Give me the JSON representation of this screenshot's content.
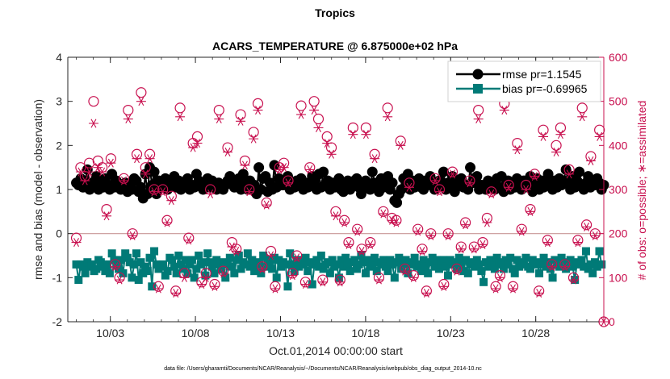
{
  "chart_data": {
    "type": "line",
    "title": "Tropics",
    "subtitle": "ACARS_TEMPERATURE @ 6.875000e+02 hPa",
    "xlabel": "Oct.01,2014 00:00:00 start",
    "ylabel": "rmse and bias (model - observation)",
    "ylabel_right": "# of obs: o=possible; ∗=assimilated",
    "xlim": [
      0.5,
      32
    ],
    "ylim": [
      -2,
      4
    ],
    "ylim_right": [
      0,
      600
    ],
    "x_tick_values": [
      3,
      8,
      13,
      18,
      23,
      28
    ],
    "x_tick_labels": [
      "10/03",
      "10/08",
      "10/13",
      "10/18",
      "10/23",
      "10/28"
    ],
    "y_tick_labels": [
      "-2",
      "-1",
      "0",
      "1",
      "2",
      "3",
      "4"
    ],
    "y_tick_labels_right": [
      "0",
      "100",
      "200",
      "300",
      "400",
      "500",
      "600"
    ],
    "grid": false,
    "legend_position": "top-right",
    "footer": "data file: /Users/gharamti/Documents/NCAR/Reanalysis/~/Documents/NCAR/Reanalysis/webpub/obs_diag_output_2014-10.nc",
    "colors": {
      "rmse": "#000000",
      "bias": "#007a77",
      "obs": "#c8104f",
      "zero_line": "#c89696"
    },
    "series": [
      {
        "name": "rmse",
        "legend": "rmse pr=1.1545",
        "values": [
          1.15,
          1.1,
          1.25,
          1.05,
          1.2,
          1.45,
          1.0,
          1.15,
          1.1,
          1.3,
          1.0,
          1.2,
          1.05,
          1.25,
          1.1,
          1.0,
          1.35,
          1.05,
          1.2,
          1.1,
          1.0,
          1.05,
          1.15,
          0.95,
          1.1,
          1.0,
          1.25,
          1.2,
          0.95,
          1.05,
          0.8,
          1.35,
          0.9,
          1.5,
          1.1,
          1.4,
          0.9,
          1.2,
          1.05,
          1.1,
          1.25,
          1.0,
          1.15,
          1.1,
          1.3,
          1.05,
          1.2,
          1.0,
          1.1,
          1.15,
          1.25,
          1.0,
          1.1,
          1.05,
          1.35,
          1.2,
          1.1,
          1.0,
          1.15,
          1.25,
          1.05,
          1.2,
          1.1,
          1.0,
          1.15,
          1.05,
          1.0,
          1.1,
          1.2,
          1.3,
          1.15,
          1.05,
          1.1,
          1.25,
          1.0,
          1.35,
          1.1,
          1.0,
          1.2,
          1.05,
          1.1,
          0.9,
          1.5,
          1.0,
          1.25,
          1.3,
          0.95,
          1.15,
          1.0,
          1.55,
          1.05,
          1.25,
          1.1,
          1.1,
          1.2,
          1.3,
          1.0,
          1.15,
          1.05,
          1.2,
          1.1,
          1.25,
          1.0,
          1.15,
          1.05,
          1.1,
          1.3,
          1.2,
          1.0,
          1.35,
          1.05,
          1.4,
          1.1,
          1.2,
          1.0,
          1.15,
          1.05,
          1.1,
          1.25,
          1.0,
          0.95,
          1.1,
          1.2,
          1.0,
          1.1,
          1.2,
          1.25,
          1.05,
          0.9,
          1.1,
          1.2,
          1.05,
          1.0,
          1.4,
          1.15,
          1.1,
          0.95,
          1.25,
          1.05,
          1.2,
          1.3,
          1.0,
          1.15,
          0.75,
          0.7,
          0.9,
          1.0,
          1.25,
          1.1,
          1.35,
          1.0,
          1.2,
          1.05,
          1.15,
          1.25,
          1.05,
          1.0,
          1.2,
          1.1,
          1.3,
          1.15,
          1.0,
          1.05,
          1.2,
          1.1,
          1.4,
          1.0,
          1.15,
          1.05,
          1.3,
          0.95,
          1.1,
          1.2,
          1.25,
          1.05,
          1.1,
          1.0,
          1.5,
          1.15,
          1.25,
          1.3,
          1.0,
          1.1,
          1.05,
          1.0,
          1.2,
          1.15,
          1.1,
          1.0,
          1.25,
          1.05,
          1.3,
          0.95,
          1.1,
          1.2,
          1.0,
          1.15,
          1.05,
          1.25,
          1.1,
          1.0,
          1.2,
          1.15,
          1.05,
          1.3,
          0.95,
          1.1,
          1.25,
          1.0,
          1.2,
          1.05,
          1.15,
          1.35,
          1.1,
          1.0,
          1.2,
          1.05,
          1.25,
          1.1,
          1.2,
          1.45,
          1.15,
          1.0,
          1.3,
          1.05,
          1.2,
          1.4,
          1.1,
          1.0,
          1.15,
          1.3,
          1.05,
          1.2,
          1.1,
          1.25,
          1.15,
          1.0,
          1.1
        ]
      },
      {
        "name": "bias",
        "legend": "bias pr=-0.69965",
        "values": [
          -0.7,
          -1.05,
          -0.7,
          -0.75,
          -0.9,
          -0.65,
          -0.75,
          -0.7,
          -0.85,
          -0.8,
          -0.6,
          -0.65,
          -0.75,
          -0.85,
          -0.7,
          -0.9,
          -0.45,
          -0.6,
          -0.7,
          -0.8,
          -0.6,
          -0.9,
          -0.45,
          -0.55,
          -0.65,
          -1.0,
          -0.7,
          -0.45,
          -1.05,
          -0.65,
          -0.9,
          -0.75,
          -0.85,
          -0.55,
          -1.2,
          -0.4,
          -0.7,
          -0.8,
          -0.75,
          -0.7,
          -0.95,
          -0.85,
          -0.55,
          -0.6,
          -0.75,
          -0.9,
          -0.5,
          -0.7,
          -0.8,
          -0.6,
          -0.9,
          -0.7,
          -0.6,
          -1.0,
          -0.8,
          -0.5,
          -0.7,
          -0.65,
          -0.95,
          -0.45,
          -0.65,
          -0.75,
          -0.9,
          -0.6,
          -0.7,
          -0.8,
          -0.65,
          -1.0,
          -0.7,
          -0.55,
          -0.75,
          -0.9,
          -0.6,
          -0.5,
          -0.8,
          -0.65,
          -0.7,
          -0.45,
          -0.75,
          -0.6,
          -0.85,
          -0.7,
          -0.65,
          -0.9,
          -0.5,
          -0.75,
          -0.6,
          -0.7,
          -0.8,
          -0.55,
          -1.0,
          -0.6,
          -0.75,
          -0.65,
          -0.7,
          -1.2,
          -0.45,
          -0.7,
          -0.85,
          -0.6,
          -0.75,
          -0.6,
          -0.7,
          -0.55,
          -0.85,
          -0.65,
          -1.15,
          -0.7,
          -0.6,
          -0.75,
          -0.5,
          -0.8,
          -0.7,
          -0.65,
          -0.9,
          -0.6,
          -0.75,
          -0.7,
          -1.0,
          -0.6,
          -0.75,
          -0.55,
          -0.7,
          -0.85,
          -0.65,
          -0.6,
          -0.8,
          -0.7,
          -0.5,
          -0.65,
          -0.9,
          -0.6,
          -0.75,
          -0.7,
          -0.55,
          -0.85,
          -0.65,
          -0.7,
          -0.6,
          -0.75,
          -0.85,
          -0.6,
          -0.7,
          -1.0,
          -0.65,
          -0.55,
          -0.8,
          -0.7,
          -0.6,
          -0.9,
          -0.7,
          -0.65,
          -0.55,
          -0.75,
          -0.7,
          -0.85,
          -0.6,
          -0.75,
          -0.9,
          -0.65,
          -0.55,
          -0.75,
          -0.6,
          -0.8,
          -0.7,
          -0.6,
          -0.75,
          -0.95,
          -0.6,
          -0.7,
          -0.65,
          -0.8,
          -0.55,
          -0.7,
          -0.85,
          -0.6,
          -0.9,
          -0.7,
          -0.65,
          -0.75,
          -0.6,
          -0.7,
          -0.85,
          -1.1,
          -0.65,
          -0.75,
          -0.6,
          -0.7,
          -0.8,
          -0.55,
          -0.7,
          -0.65,
          -0.8,
          -0.6,
          -0.7,
          -0.55,
          -0.8,
          -0.9,
          -0.6,
          -0.75,
          -0.7,
          -0.65,
          -0.55,
          -0.75,
          -0.8,
          -0.6,
          -0.7,
          -0.65,
          -0.9,
          -0.7,
          -0.55,
          -0.75,
          -0.65,
          -0.8,
          -1.0,
          -0.6,
          -0.7,
          -0.75,
          -0.55,
          -0.65,
          -0.8,
          -0.7,
          -0.6,
          -0.75,
          -1.05,
          -0.65,
          -0.7,
          -0.6,
          -0.75,
          -0.4,
          -0.8,
          -0.7,
          -0.9,
          -0.65,
          -0.75,
          -0.4,
          -0.7
        ]
      },
      {
        "name": "possible",
        "values": [
          190,
          80,
          350,
          410,
          330,
          100,
          360,
          350,
          500,
          340,
          365,
          510,
          350,
          150,
          255,
          110,
          370,
          370,
          130,
          510,
          100,
          125,
          325,
          290,
          480,
          345,
          200,
          100,
          380,
          200,
          520,
          320,
          350,
          120,
          380,
          540,
          300,
          555,
          80,
          180,
          300,
          305,
          230,
          130,
          285,
          425,
          70,
          270,
          485,
          500,
          110,
          260,
          190,
          90,
          405,
          350,
          420,
          495,
          90,
          480,
          110,
          310,
          300,
          490,
          85,
          180,
          480,
          480,
          115,
          95,
          395,
          185,
          180,
          285,
          165,
          310,
          470,
          300,
          365,
          330,
          300,
          100,
          430,
          235,
          495,
          300,
          125,
          185,
          270,
          335,
          160,
          200,
          80,
          420,
          350,
          525,
          360,
          470,
          320,
          480,
          110,
          300,
          150,
          240,
          490,
          200,
          90,
          290,
          350,
          160,
          500,
          120,
          460,
          180,
          95,
          90,
          420,
          135,
          395,
          160,
          250,
          380,
          95,
          90,
          230,
          410,
          180,
          130,
          440,
          195,
          210,
          110,
          165,
          285,
          440,
          70,
          180,
          75,
          380,
          330,
          100,
          200,
          250,
          180,
          485,
          300,
          235,
          130,
          230,
          110,
          410,
          520,
          120,
          320,
          315,
          250,
          105,
          440,
          210,
          200,
          165,
          470,
          70,
          420,
          200,
          70,
          325,
          305,
          300,
          190,
          85,
          110,
          200,
          300,
          340,
          480,
          120,
          305,
          170,
          290,
          225,
          510,
          320,
          195,
          170,
          100,
          480,
          320,
          180,
          120,
          235,
          380,
          295,
          130,
          80,
          495,
          105,
          180,
          495,
          345,
          310,
          180,
          80,
          345,
          405,
          150,
          210,
          90,
          310,
          110,
          255,
          520,
          335,
          485,
          70,
          90,
          435,
          310,
          185,
          300,
          130,
          170,
          400,
          340,
          440,
          110,
          130,
          400,
          345,
          460,
          100,
          130,
          185,
          510,
          485,
          180,
          220,
          405,
          375,
          410,
          200,
          150,
          435,
          10,
          0
        ]
      },
      {
        "name": "assimilated",
        "values": [
          180,
          75,
          340,
          380,
          320,
          95,
          340,
          335,
          450,
          330,
          350,
          480,
          340,
          140,
          240,
          100,
          360,
          360,
          125,
          490,
          95,
          120,
          320,
          280,
          460,
          335,
          195,
          95,
          370,
          190,
          500,
          310,
          335,
          115,
          370,
          510,
          295,
          535,
          75,
          170,
          295,
          300,
          225,
          120,
          275,
          410,
          65,
          260,
          465,
          480,
          100,
          255,
          185,
          85,
          395,
          345,
          405,
          480,
          85,
          460,
          100,
          305,
          290,
          470,
          80,
          175,
          460,
          460,
          110,
          90,
          385,
          175,
          170,
          275,
          160,
          300,
          455,
          295,
          355,
          320,
          295,
          95,
          415,
          225,
          480,
          295,
          120,
          175,
          265,
          325,
          150,
          195,
          75,
          405,
          345,
          505,
          350,
          455,
          315,
          460,
          105,
          295,
          145,
          230,
          470,
          195,
          85,
          285,
          345,
          155,
          480,
          115,
          440,
          175,
          90,
          85,
          405,
          130,
          380,
          155,
          240,
          370,
          90,
          85,
          225,
          400,
          175,
          125,
          425,
          190,
          205,
          105,
          160,
          280,
          425,
          65,
          175,
          70,
          370,
          320,
          95,
          190,
          245,
          175,
          465,
          295,
          230,
          125,
          225,
          105,
          400,
          500,
          115,
          315,
          305,
          245,
          100,
          425,
          205,
          195,
          160,
          455,
          65,
          405,
          195,
          65,
          320,
          300,
          295,
          185,
          80,
          105,
          195,
          295,
          335,
          465,
          115,
          300,
          165,
          280,
          220,
          490,
          315,
          190,
          165,
          95,
          460,
          315,
          175,
          115,
          225,
          370,
          290,
          125,
          75,
          480,
          100,
          175,
          480,
          335,
          305,
          175,
          75,
          340,
          390,
          145,
          205,
          85,
          300,
          105,
          250,
          500,
          330,
          470,
          65,
          85,
          420,
          300,
          180,
          295,
          125,
          165,
          385,
          330,
          425,
          105,
          125,
          385,
          335,
          445,
          95,
          125,
          180,
          490,
          465,
          175,
          215,
          395,
          365,
          400,
          195,
          145,
          420,
          5,
          0
        ]
      }
    ]
  }
}
